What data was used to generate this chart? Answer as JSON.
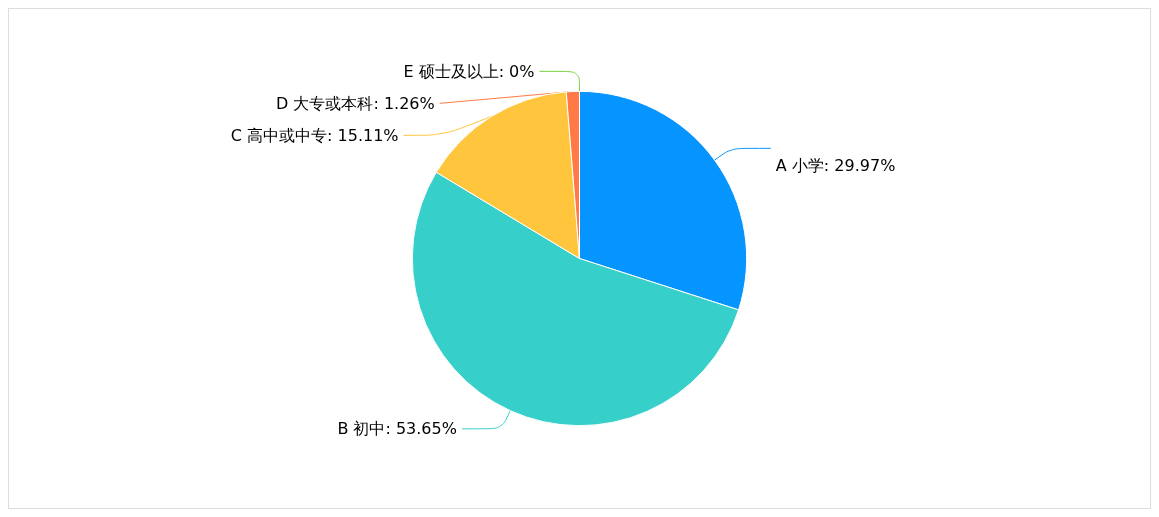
{
  "chart_data": {
    "type": "pie",
    "categories": [
      "A 小学",
      "B 初中",
      "C 高中或中专",
      "D 大专或本科",
      "E 硕士及以上"
    ],
    "values": [
      29.97,
      53.65,
      15.11,
      1.26,
      0
    ],
    "value_labels": [
      "29.97%",
      "53.65%",
      "15.11%",
      "1.26%",
      "0%"
    ],
    "colors": [
      "#0695fe",
      "#36cfc9",
      "#ffc53d",
      "#ff7a45",
      "#73d13d"
    ]
  }
}
